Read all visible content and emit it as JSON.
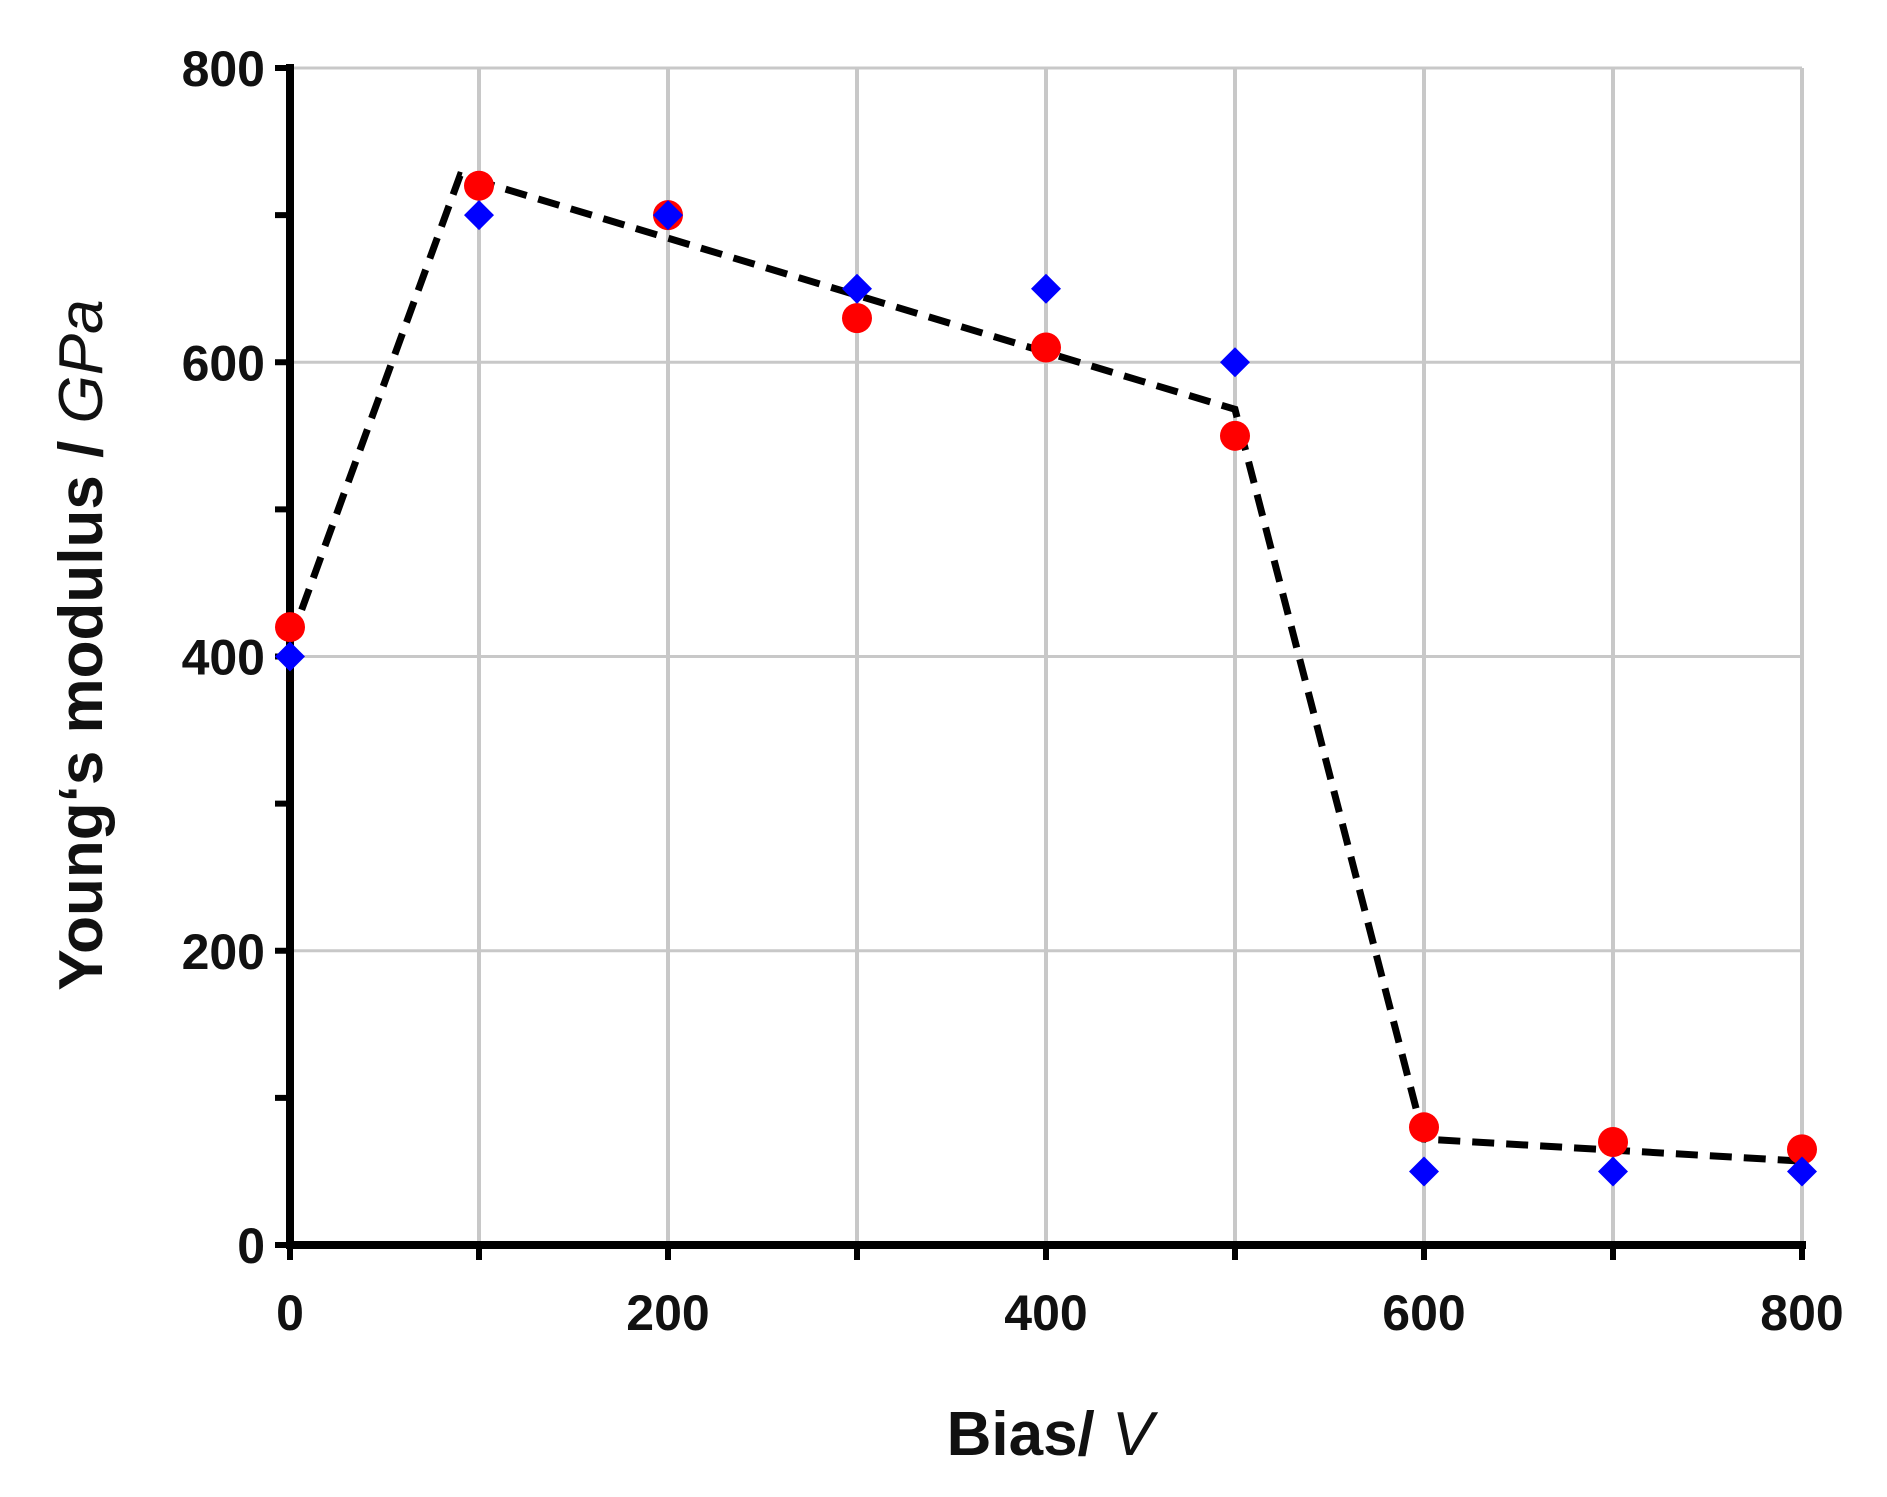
{
  "chart_data": {
    "type": "scatter",
    "title": "",
    "xlabel": "Bias/",
    "xlabel_unit": "V",
    "ylabel": "Young‘s modulus /",
    "ylabel_unit": "GPa",
    "xlim": [
      0,
      800
    ],
    "ylim": [
      0,
      800
    ],
    "x_ticks": [
      0,
      200,
      400,
      600,
      800
    ],
    "y_ticks": [
      0,
      200,
      400,
      600,
      800
    ],
    "grid": true,
    "legend": "none",
    "series": [
      {
        "marker": "circle",
        "color": "#ff0000",
        "points": [
          {
            "x": 0,
            "y": 420
          },
          {
            "x": 100,
            "y": 720
          },
          {
            "x": 200,
            "y": 700
          },
          {
            "x": 300,
            "y": 630
          },
          {
            "x": 400,
            "y": 610
          },
          {
            "x": 500,
            "y": 550
          },
          {
            "x": 600,
            "y": 80
          },
          {
            "x": 700,
            "y": 70
          },
          {
            "x": 800,
            "y": 65
          }
        ]
      },
      {
        "marker": "diamond",
        "color": "#0000ff",
        "points": [
          {
            "x": 0,
            "y": 400
          },
          {
            "x": 100,
            "y": 700
          },
          {
            "x": 200,
            "y": 700
          },
          {
            "x": 300,
            "y": 650
          },
          {
            "x": 400,
            "y": 650
          },
          {
            "x": 500,
            "y": 600
          },
          {
            "x": 600,
            "y": 50
          },
          {
            "x": 700,
            "y": 50
          },
          {
            "x": 800,
            "y": 50
          }
        ]
      }
    ],
    "trend_line": {
      "style": "dashed",
      "color": "#000000",
      "points": [
        {
          "x": 0,
          "y": 410
        },
        {
          "x": 90,
          "y": 727
        },
        {
          "x": 500,
          "y": 568
        },
        {
          "x": 600,
          "y": 72
        },
        {
          "x": 800,
          "y": 57
        }
      ]
    }
  }
}
